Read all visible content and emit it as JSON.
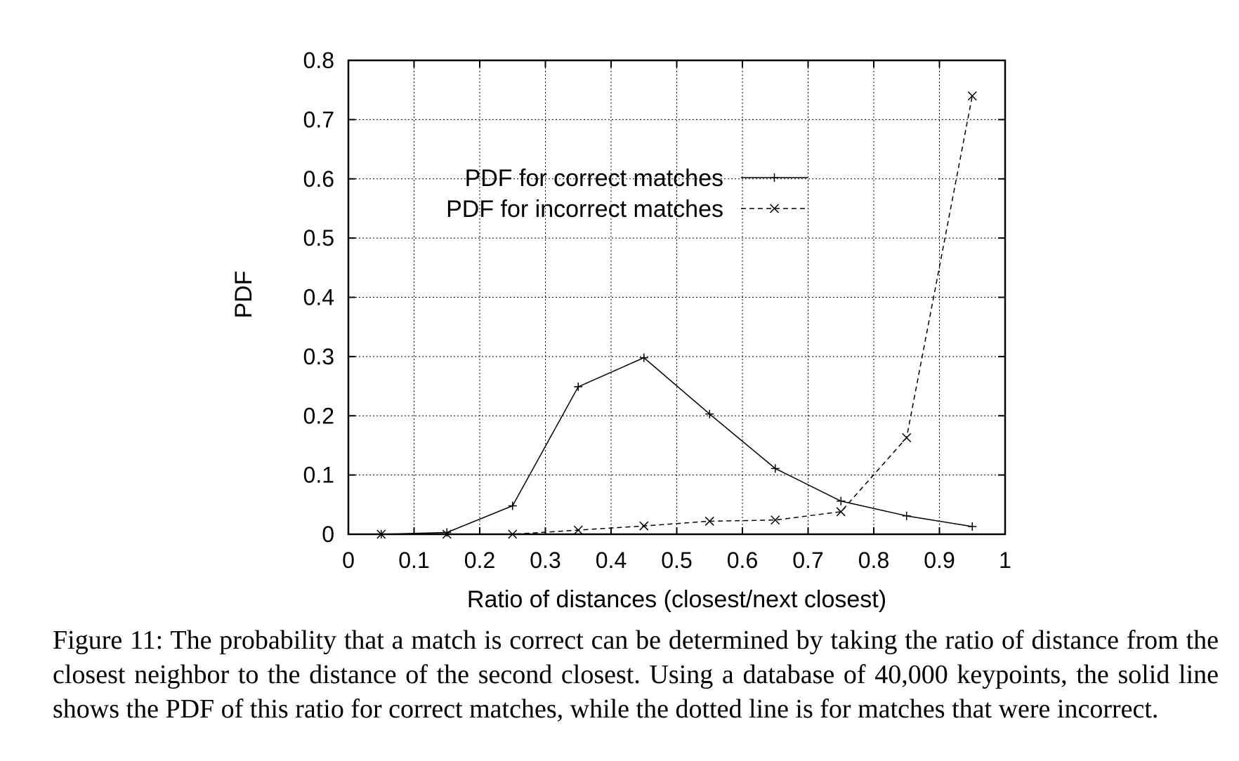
{
  "chart_data": {
    "type": "line",
    "xlabel": "Ratio of distances (closest/next closest)",
    "ylabel": "PDF",
    "xlim": [
      0,
      1
    ],
    "ylim": [
      0,
      0.8
    ],
    "xticks": [
      "0",
      "0.1",
      "0.2",
      "0.3",
      "0.4",
      "0.5",
      "0.6",
      "0.7",
      "0.8",
      "0.9",
      "1"
    ],
    "yticks": [
      "0",
      "0.1",
      "0.2",
      "0.3",
      "0.4",
      "0.5",
      "0.6",
      "0.7",
      "0.8"
    ],
    "grid": true,
    "legend_position": "top-center",
    "series": [
      {
        "name": "PDF for correct matches",
        "marker": "plus",
        "line_style": "solid",
        "x": [
          0.05,
          0.15,
          0.25,
          0.35,
          0.45,
          0.55,
          0.65,
          0.75,
          0.85,
          0.95
        ],
        "y": [
          0.0,
          0.003,
          0.048,
          0.249,
          0.298,
          0.203,
          0.111,
          0.056,
          0.031,
          0.013
        ]
      },
      {
        "name": "PDF for incorrect matches",
        "marker": "cross",
        "line_style": "dashed",
        "x": [
          0.05,
          0.15,
          0.25,
          0.35,
          0.45,
          0.55,
          0.65,
          0.75,
          0.85,
          0.95
        ],
        "y": [
          0.0,
          0.0,
          0.0,
          0.007,
          0.014,
          0.022,
          0.024,
          0.038,
          0.163,
          0.74
        ]
      }
    ]
  },
  "caption": "Figure 11: The probability that a match is correct can be determined by taking the ratio of distance from the closest neighbor to the distance of the second closest. Using a database of 40,000 keypoints, the solid line shows the PDF of this ratio for correct matches, while the dotted line is for matches that were incorrect."
}
